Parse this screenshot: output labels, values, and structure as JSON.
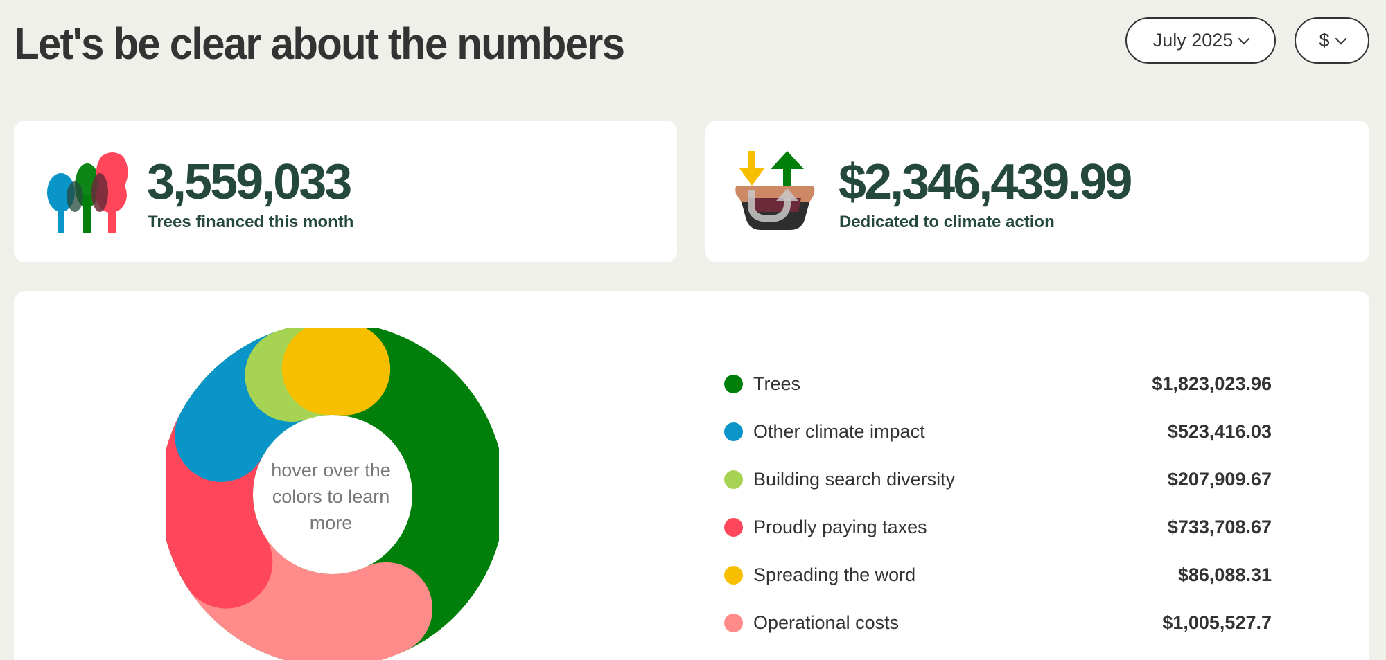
{
  "header": {
    "title": "Let's be clear about the numbers",
    "month_dropdown": "July 2025",
    "currency_dropdown": "$"
  },
  "stats": {
    "trees": {
      "value": "3,559,033",
      "label": "Trees financed this month",
      "icon": "trees-icon"
    },
    "climate": {
      "value": "$2,346,439.99",
      "label": "Dedicated to climate action",
      "icon": "basket-arrows-icon"
    }
  },
  "chart": {
    "hint": "hover over the colors to learn more"
  },
  "chart_data": {
    "type": "pie",
    "categories": [
      "Trees",
      "Other climate impact",
      "Building search diversity",
      "Proudly paying taxes",
      "Spreading the word",
      "Operational costs"
    ],
    "values": [
      1823023.96,
      523416.03,
      207909.67,
      733708.67,
      86088.31,
      1005527.7
    ],
    "labels": [
      "$1,823,023.96",
      "$523,416.03",
      "$207,909.67",
      "$733,708.67",
      "$86,088.31",
      "$1,005,527.7"
    ],
    "colors": [
      "#007f0b",
      "#0a95c8",
      "#a6d452",
      "#ff465a",
      "#f8bf00",
      "#ff8c8a"
    ]
  }
}
